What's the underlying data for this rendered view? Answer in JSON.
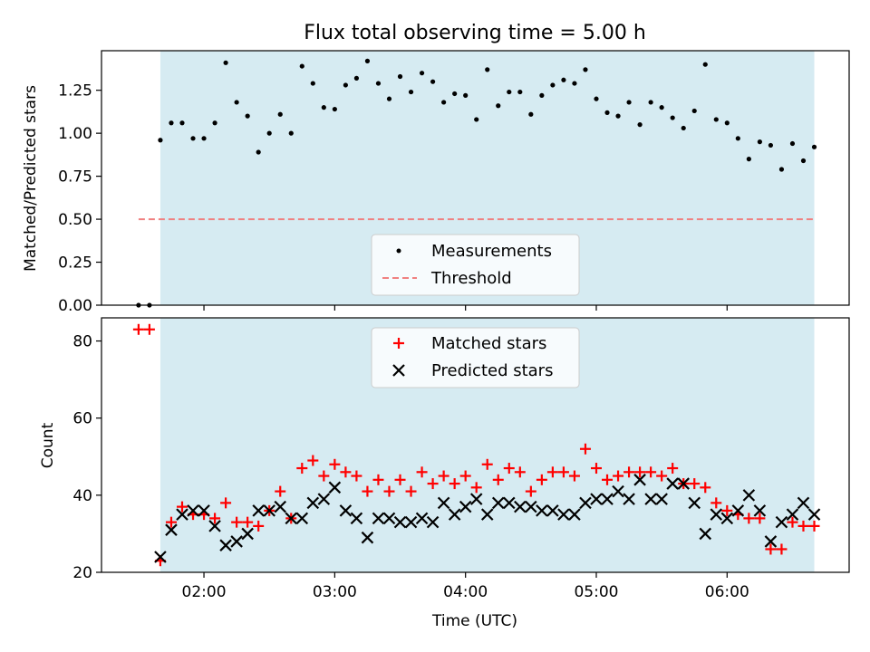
{
  "title": "Flux total observing time = 5.00 h",
  "colors": {
    "shade": "#add8e6",
    "measurement": "#000000",
    "threshold": "#f08080",
    "matched": "#ff0000",
    "predicted": "#000000"
  },
  "chart_data": [
    {
      "type": "scatter",
      "ylabel": "Matched/Predicted stars",
      "xlabel": "",
      "ylim": [
        0,
        1.48
      ],
      "yticks": [
        0.0,
        0.25,
        0.5,
        0.75,
        1.0,
        1.25
      ],
      "ytick_labels": [
        "0.00",
        "0.25",
        "0.50",
        "0.75",
        "1.00",
        "1.25"
      ],
      "threshold": {
        "name": "Threshold",
        "value": 0.5,
        "x_start": "01:30",
        "x_end": "06:40"
      },
      "shaded_interval": {
        "start": "01:40",
        "end": "06:40"
      },
      "legend_position": "bottom-center",
      "series": [
        {
          "name": "Measurements",
          "marker": "dot",
          "x": [
            "01:30",
            "01:35",
            "01:40",
            "01:45",
            "01:50",
            "01:55",
            "02:00",
            "02:05",
            "02:10",
            "02:15",
            "02:20",
            "02:25",
            "02:30",
            "02:35",
            "02:40",
            "02:45",
            "02:50",
            "02:55",
            "03:00",
            "03:05",
            "03:10",
            "03:15",
            "03:20",
            "03:25",
            "03:30",
            "03:35",
            "03:40",
            "03:45",
            "03:50",
            "03:55",
            "04:00",
            "04:05",
            "04:10",
            "04:15",
            "04:20",
            "04:25",
            "04:30",
            "04:35",
            "04:40",
            "04:45",
            "04:50",
            "04:55",
            "05:00",
            "05:05",
            "05:10",
            "05:15",
            "05:20",
            "05:25",
            "05:30",
            "05:35",
            "05:40",
            "05:45",
            "05:50",
            "05:55",
            "06:00",
            "06:05",
            "06:10",
            "06:15",
            "06:20",
            "06:25",
            "06:30",
            "06:35",
            "06:40"
          ],
          "y": [
            0.0,
            0.0,
            0.96,
            1.06,
            1.06,
            0.97,
            0.97,
            1.06,
            1.41,
            1.18,
            1.1,
            0.89,
            1.0,
            1.11,
            1.0,
            1.39,
            1.29,
            1.15,
            1.14,
            1.28,
            1.32,
            1.42,
            1.29,
            1.2,
            1.33,
            1.24,
            1.35,
            1.3,
            1.18,
            1.23,
            1.22,
            1.08,
            1.37,
            1.16,
            1.24,
            1.24,
            1.11,
            1.22,
            1.28,
            1.31,
            1.29,
            1.37,
            1.2,
            1.12,
            1.1,
            1.18,
            1.05,
            1.18,
            1.15,
            1.09,
            1.03,
            1.13,
            1.4,
            1.08,
            1.06,
            0.97,
            0.85,
            0.95,
            0.93,
            0.79,
            0.94,
            0.84,
            0.92
          ]
        }
      ]
    },
    {
      "type": "scatter",
      "ylabel": "Count",
      "xlabel": "Time (UTC)",
      "ylim": [
        20,
        86
      ],
      "yticks": [
        20,
        40,
        60,
        80
      ],
      "ytick_labels": [
        "20",
        "40",
        "60",
        "80"
      ],
      "xlim": [
        "01:13",
        "06:56"
      ],
      "xticks": [
        "02:00",
        "03:00",
        "04:00",
        "05:00",
        "06:00"
      ],
      "shaded_interval": {
        "start": "01:40",
        "end": "06:40"
      },
      "legend_position": "top-center",
      "series": [
        {
          "name": "Matched stars",
          "marker": "plus",
          "x": [
            "01:30",
            "01:35",
            "01:40",
            "01:45",
            "01:50",
            "01:55",
            "02:00",
            "02:05",
            "02:10",
            "02:15",
            "02:20",
            "02:25",
            "02:30",
            "02:35",
            "02:40",
            "02:45",
            "02:50",
            "02:55",
            "03:00",
            "03:05",
            "03:10",
            "03:15",
            "03:20",
            "03:25",
            "03:30",
            "03:35",
            "03:40",
            "03:45",
            "03:50",
            "03:55",
            "04:00",
            "04:05",
            "04:10",
            "04:15",
            "04:20",
            "04:25",
            "04:30",
            "04:35",
            "04:40",
            "04:45",
            "04:50",
            "04:55",
            "05:00",
            "05:05",
            "05:10",
            "05:15",
            "05:20",
            "05:25",
            "05:30",
            "05:35",
            "05:40",
            "05:45",
            "05:50",
            "05:55",
            "06:00",
            "06:05",
            "06:10",
            "06:15",
            "06:20",
            "06:25",
            "06:30",
            "06:35",
            "06:40"
          ],
          "y": [
            83,
            83,
            23,
            33,
            37,
            35,
            35,
            34,
            38,
            33,
            33,
            32,
            36,
            41,
            34,
            47,
            49,
            45,
            48,
            46,
            45,
            41,
            44,
            41,
            44,
            41,
            46,
            43,
            45,
            43,
            45,
            42,
            48,
            44,
            47,
            46,
            41,
            44,
            46,
            46,
            45,
            52,
            47,
            44,
            45,
            46,
            46,
            46,
            45,
            47,
            43,
            43,
            42,
            38,
            36,
            35,
            34,
            34,
            26,
            26,
            33,
            32,
            32
          ]
        },
        {
          "name": "Predicted stars",
          "marker": "x",
          "x": [
            "01:40",
            "01:45",
            "01:50",
            "01:55",
            "02:00",
            "02:05",
            "02:10",
            "02:15",
            "02:20",
            "02:25",
            "02:30",
            "02:35",
            "02:40",
            "02:45",
            "02:50",
            "02:55",
            "03:00",
            "03:05",
            "03:10",
            "03:15",
            "03:20",
            "03:25",
            "03:30",
            "03:35",
            "03:40",
            "03:45",
            "03:50",
            "03:55",
            "04:00",
            "04:05",
            "04:10",
            "04:15",
            "04:20",
            "04:25",
            "04:30",
            "04:35",
            "04:40",
            "04:45",
            "04:50",
            "04:55",
            "05:00",
            "05:05",
            "05:10",
            "05:15",
            "05:20",
            "05:25",
            "05:30",
            "05:35",
            "05:40",
            "05:45",
            "05:50",
            "05:55",
            "06:00",
            "06:05",
            "06:10",
            "06:15",
            "06:20",
            "06:25",
            "06:30",
            "06:35",
            "06:40"
          ],
          "y": [
            24,
            31,
            35,
            36,
            36,
            32,
            27,
            28,
            30,
            36,
            36,
            37,
            34,
            34,
            38,
            39,
            42,
            36,
            34,
            29,
            34,
            34,
            33,
            33,
            34,
            33,
            38,
            35,
            37,
            39,
            35,
            38,
            38,
            37,
            37,
            36,
            36,
            35,
            35,
            38,
            39,
            39,
            41,
            39,
            44,
            39,
            39,
            43,
            43,
            38,
            30,
            35,
            34,
            36,
            40,
            36,
            28,
            33,
            35,
            38,
            35
          ]
        }
      ]
    }
  ]
}
